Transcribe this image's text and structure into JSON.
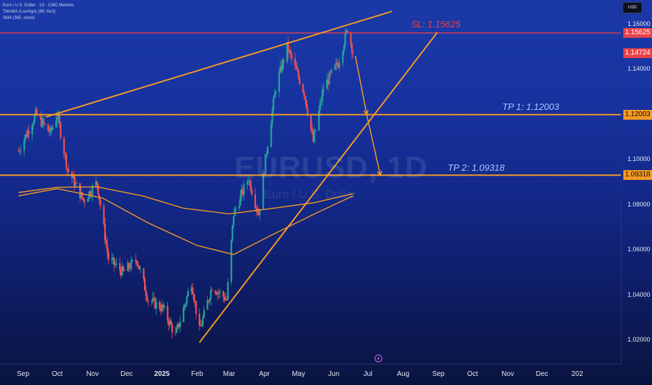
{
  "header": {
    "symbol_line": "Euro / U.S. Dollar · 1D · CMC Markets",
    "indicator_1": "TMAMA (LuxAlgo) (99, hlc3)",
    "indicator_2": "SMA (365, close)",
    "currency": "USD"
  },
  "watermark": {
    "symbol": "EURUSD, 1D",
    "name": "Euro / U.S. Dollar"
  },
  "chart_data": {
    "type": "candlestick",
    "x_ticks": [
      "Sep",
      "Oct",
      "Nov",
      "Dec",
      "2025",
      "Feb",
      "Mar",
      "Apr",
      "May",
      "Jun",
      "Jul",
      "Aug",
      "Sep",
      "Oct",
      "Nov",
      "Dec",
      "202"
    ],
    "y_ticks": [
      "1.16000",
      "1.14000",
      "1.12000",
      "1.10000",
      "1.08000",
      "1.06000",
      "1.04000",
      "1.02000"
    ],
    "ylim": [
      1.011,
      1.169
    ],
    "price_path": [
      [
        "2024-08-28",
        1.104
      ],
      [
        "2024-09-12",
        1.12
      ],
      [
        "2024-09-25",
        1.112
      ],
      [
        "2024-10-01",
        1.12
      ],
      [
        "2024-10-10",
        1.096
      ],
      [
        "2024-10-24",
        1.082
      ],
      [
        "2024-11-05",
        1.09
      ],
      [
        "2024-11-15",
        1.056
      ],
      [
        "2024-11-28",
        1.05
      ],
      [
        "2024-12-10",
        1.056
      ],
      [
        "2024-12-20",
        1.038
      ],
      [
        "2025-01-02",
        1.034
      ],
      [
        "2025-01-13",
        1.022
      ],
      [
        "2025-01-27",
        1.046
      ],
      [
        "2025-02-03",
        1.024
      ],
      [
        "2025-02-14",
        1.044
      ],
      [
        "2025-02-27",
        1.038
      ],
      [
        "2025-03-05",
        1.076
      ],
      [
        "2025-03-18",
        1.092
      ],
      [
        "2025-03-27",
        1.076
      ],
      [
        "2025-04-03",
        1.104
      ],
      [
        "2025-04-11",
        1.132
      ],
      [
        "2025-04-21",
        1.15
      ],
      [
        "2025-05-06",
        1.13
      ],
      [
        "2025-05-14",
        1.108
      ],
      [
        "2025-05-23",
        1.132
      ],
      [
        "2025-06-05",
        1.143
      ],
      [
        "2025-06-13",
        1.158
      ],
      [
        "2025-06-18",
        1.148
      ]
    ],
    "tmama_path": [
      [
        "2024-08-28",
        1.0855
      ],
      [
        "2024-10-01",
        1.0878
      ],
      [
        "2024-11-05",
        1.088
      ],
      [
        "2024-12-15",
        1.084
      ],
      [
        "2025-01-20",
        1.0785
      ],
      [
        "2025-03-01",
        1.076
      ],
      [
        "2025-04-01",
        1.078
      ],
      [
        "2025-05-15",
        1.081
      ],
      [
        "2025-06-18",
        1.085
      ]
    ],
    "sma_path": [
      [
        "2024-08-28",
        1.084
      ],
      [
        "2024-10-01",
        1.0872
      ],
      [
        "2024-11-10",
        1.083
      ],
      [
        "2024-12-20",
        1.072
      ],
      [
        "2025-02-01",
        1.062
      ],
      [
        "2025-03-05",
        1.058
      ],
      [
        "2025-04-05",
        1.066
      ],
      [
        "2025-05-15",
        1.076
      ],
      [
        "2025-06-18",
        1.084
      ]
    ],
    "levels": [
      {
        "name": "SL",
        "label": "SL: 1.15625",
        "value": 1.15625,
        "color": "#e8424a"
      },
      {
        "name": "TP1",
        "label": "TP 1: 1.12003",
        "value": 1.12003,
        "color": "#f59a23"
      },
      {
        "name": "TP2",
        "label": "TP 2: 1.09318",
        "value": 1.09318,
        "color": "#f59a23"
      }
    ],
    "price_badges": [
      {
        "value": "1.15625",
        "color": "#e8424a"
      },
      {
        "value": "1.14724",
        "color": "#e8424a"
      },
      {
        "value": "1.12003",
        "color": "#f59a23"
      },
      {
        "value": "1.09318",
        "color": "#f59a23"
      }
    ],
    "trendlines": [
      {
        "from": [
          "2024-09-21",
          1.119
        ],
        "to": [
          "2025-07-22",
          1.1658
        ]
      },
      {
        "from": [
          "2025-02-03",
          1.019
        ],
        "to": [
          "2025-08-31",
          1.1565
        ]
      }
    ],
    "projection_arrows": [
      {
        "points": [
          [
            "2025-06-20",
            1.146
          ],
          [
            "2025-06-30",
            1.12
          ]
        ]
      },
      {
        "points": [
          [
            "2025-06-30",
            1.12
          ],
          [
            "2025-07-12",
            1.093
          ]
        ]
      }
    ],
    "colors": {
      "up": "#26a69a",
      "down": "#ef5350",
      "orange": "#f59a23",
      "red": "#e8424a"
    }
  }
}
